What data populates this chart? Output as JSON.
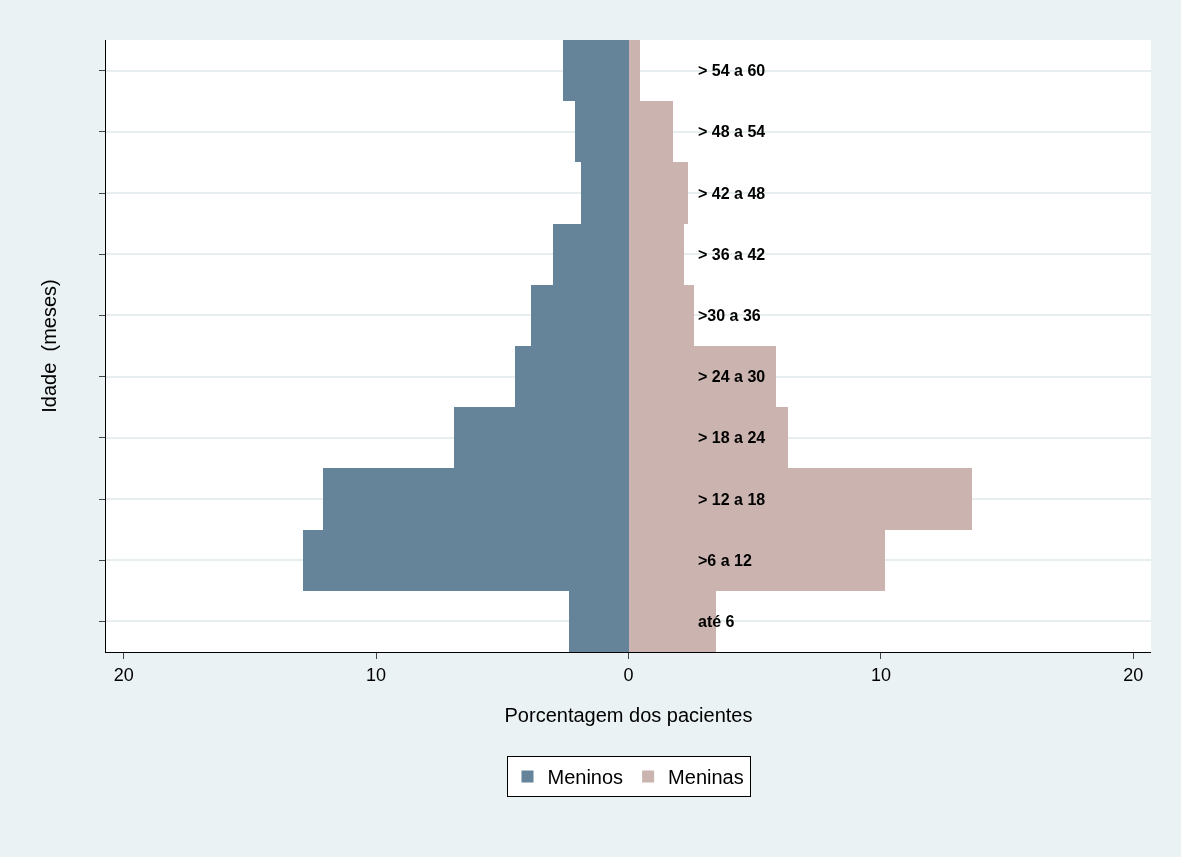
{
  "chart_data": {
    "type": "bar",
    "orientation": "horizontal",
    "stacked": true,
    "xlabel": "Porcentagem dos pacientes",
    "ylabel": "Idade  (meses)",
    "categories": [
      "> 54 a 60",
      "> 48 a 54",
      "> 42 a 48",
      "> 36 a 42",
      ">30 a 36",
      "> 24 a 30",
      "> 18 a 24",
      "> 12 a 18",
      ">6 a 12",
      "até 6"
    ],
    "series": [
      {
        "name": "Meninos",
        "color": "#65849a",
        "values": [
          -2.6,
          -2.1,
          -1.9,
          -3.0,
          -3.85,
          -4.5,
          -6.9,
          -12.1,
          -12.9,
          -2.35
        ]
      },
      {
        "name": "Meninas",
        "color": "#cbb4af",
        "values": [
          0.45,
          1.75,
          2.35,
          2.2,
          2.6,
          5.85,
          6.3,
          13.6,
          10.15,
          3.45
        ]
      }
    ],
    "xlim": [
      -20.7,
      20.7
    ],
    "xticks": [
      {
        "value": -20,
        "label": "20"
      },
      {
        "value": -10,
        "label": "10"
      },
      0,
      {
        "value": 10,
        "label": "10"
      },
      {
        "value": 20,
        "label": "20"
      }
    ],
    "grid": "y",
    "legend": "bottom"
  }
}
